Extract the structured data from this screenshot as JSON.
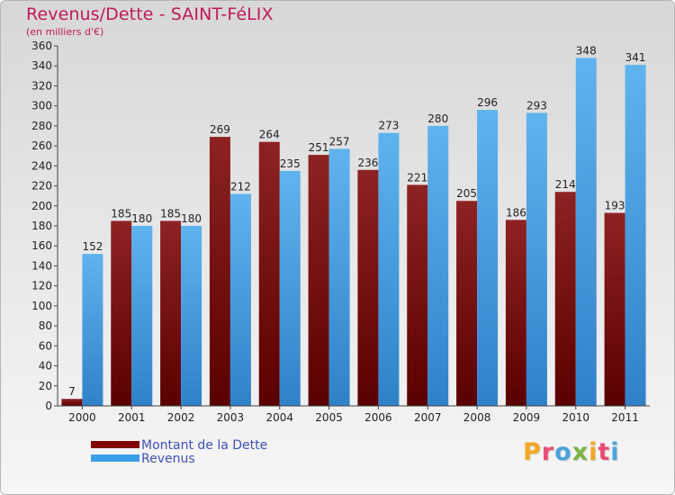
{
  "chart_data": {
    "type": "bar",
    "title": "Revenus/Dette - SAINT-FéLIX",
    "subtitle": "(en milliers d'€)",
    "categories": [
      "2000",
      "2001",
      "2002",
      "2003",
      "2004",
      "2005",
      "2006",
      "2007",
      "2008",
      "2009",
      "2010",
      "2011"
    ],
    "series": [
      {
        "name": "Montant de la Dette",
        "color": "#800000",
        "values": [
          7,
          185,
          185,
          269,
          264,
          251,
          236,
          221,
          205,
          186,
          214,
          193
        ]
      },
      {
        "name": "Revenus",
        "color": "#3a9ee8",
        "values": [
          152,
          180,
          180,
          212,
          235,
          257,
          273,
          280,
          296,
          293,
          348,
          341
        ]
      }
    ],
    "ylim": [
      0,
      360
    ],
    "ytick_step": 20,
    "grid": false,
    "legend_position": "bottom-left"
  },
  "brand": {
    "letters": [
      "P",
      "r",
      "o",
      "x",
      "i",
      "t",
      "i"
    ],
    "colors": [
      "#f5a623",
      "#e94e77",
      "#4aa3df",
      "#7cb342",
      "#f5a623",
      "#e94e77",
      "#4aa3df"
    ]
  }
}
